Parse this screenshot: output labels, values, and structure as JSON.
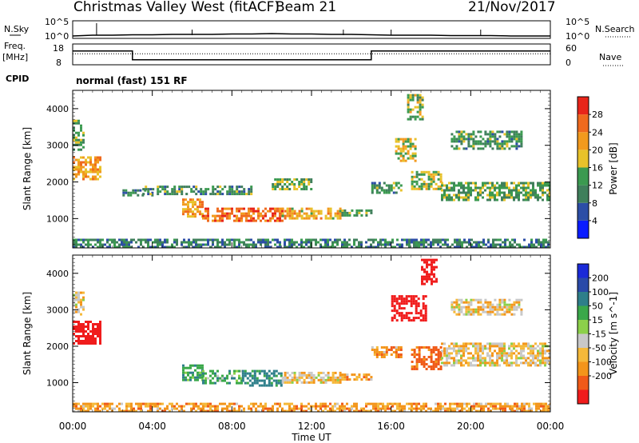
{
  "header": {
    "station": "Christmas Valley West (fitACF)",
    "beam": "Beam 21",
    "date": "21/Nov/2017"
  },
  "colors": {
    "power": [
      "#0a1cff",
      "#2c4ea6",
      "#3f7f5b",
      "#3b9a50",
      "#e8c22a",
      "#f29a1e",
      "#ef6a1e",
      "#e8251a"
    ],
    "velocity": [
      "#f01c1c",
      "#f05a18",
      "#f3951a",
      "#f5b93a",
      "#c8c8c8",
      "#8cd04a",
      "#3aa84a",
      "#2e7f8a",
      "#2a4aa8",
      "#1a2ad8"
    ]
  },
  "chart_data": [
    {
      "type": "line",
      "name": "noise-search-panel",
      "left_label": "N.Sky",
      "right_label": "N.Search",
      "left_ticks": [
        "10^5",
        "10^0"
      ],
      "right_ticks": [
        "10^5",
        "10^0"
      ],
      "series": [
        {
          "name": "N.Sky",
          "x": [
            0,
            0.5,
            1,
            2,
            3,
            4,
            5,
            6,
            7,
            8,
            9,
            10,
            11,
            12,
            13,
            14,
            15,
            16,
            17,
            18,
            19,
            20,
            21,
            22,
            23,
            24
          ],
          "y": [
            0.2,
            0.25,
            0.3,
            0.3,
            0.35,
            0.35,
            0.4,
            0.4,
            0.4,
            0.45,
            0.45,
            0.5,
            0.45,
            0.45,
            0.4,
            0.4,
            0.35,
            0.3,
            0.3,
            0.3,
            0.25,
            0.25,
            0.25,
            0.2,
            0.2,
            0.2
          ]
        }
      ],
      "xlim": [
        0,
        24
      ]
    },
    {
      "type": "line",
      "name": "frequency-nave-panel",
      "left_label_lines": [
        "Freq.",
        "[MHz]"
      ],
      "right_label": "Nave",
      "left_ticks": [
        "18",
        "8"
      ],
      "right_ticks": [
        "60",
        "0"
      ],
      "series": [
        {
          "name": "Freq.",
          "x": [
            0,
            3,
            3,
            15,
            15,
            24
          ],
          "y": [
            14.8,
            14.8,
            10.2,
            10.2,
            14.8,
            14.8
          ]
        },
        {
          "name": "Nave",
          "x": [
            0,
            24
          ],
          "y": [
            32,
            32
          ]
        }
      ],
      "xlim": [
        0,
        24
      ],
      "ylim": [
        8,
        18
      ]
    },
    {
      "type": "label",
      "name": "cpid-panel",
      "label": "CPID",
      "text": "normal (fast) 151 RF"
    },
    {
      "type": "heatmap",
      "name": "power-panel",
      "ylabel": "Slant Range [km]",
      "yticks": [
        1000,
        2000,
        3000,
        4000
      ],
      "ylim": [
        200,
        4500
      ],
      "xlim": [
        0,
        24
      ],
      "colorbar_label": "Power [dB]",
      "colorbar_ticks": [
        4,
        8,
        12,
        16,
        20,
        24,
        28
      ],
      "colorbar_range": [
        0,
        32
      ],
      "regions": [
        {
          "x": [
            0.0,
            1.4
          ],
          "range": [
            2050,
            2700
          ],
          "value": 22
        },
        {
          "x": [
            0.0,
            0.6
          ],
          "range": [
            2900,
            3700
          ],
          "value": 14
        },
        {
          "x": [
            2.5,
            4.0
          ],
          "range": [
            1650,
            1800
          ],
          "value": 10
        },
        {
          "x": [
            5.5,
            6.5
          ],
          "range": [
            1050,
            1550
          ],
          "value": 22
        },
        {
          "x": [
            6.5,
            10.5
          ],
          "range": [
            950,
            1300
          ],
          "value": 26
        },
        {
          "x": [
            10.5,
            13.5
          ],
          "range": [
            1000,
            1300
          ],
          "value": 20
        },
        {
          "x": [
            13.5,
            15.0
          ],
          "range": [
            1100,
            1250
          ],
          "value": 12
        },
        {
          "x": [
            3.5,
            9.0
          ],
          "range": [
            1700,
            1900
          ],
          "value": 12
        },
        {
          "x": [
            10.0,
            12.0
          ],
          "range": [
            1800,
            2100
          ],
          "value": 14
        },
        {
          "x": [
            15.0,
            16.5
          ],
          "range": [
            1700,
            2000
          ],
          "value": 12
        },
        {
          "x": [
            16.2,
            17.2
          ],
          "range": [
            2600,
            3200
          ],
          "value": 18
        },
        {
          "x": [
            17.0,
            18.5
          ],
          "range": [
            1800,
            2300
          ],
          "value": 16
        },
        {
          "x": [
            18.5,
            24.0
          ],
          "range": [
            1500,
            2000
          ],
          "value": 14
        },
        {
          "x": [
            19.0,
            22.5
          ],
          "range": [
            2900,
            3400
          ],
          "value": 12
        },
        {
          "x": [
            16.8,
            17.6
          ],
          "range": [
            3700,
            4400
          ],
          "value": 16
        },
        {
          "x": [
            0.0,
            24.0
          ],
          "range": [
            250,
            450
          ],
          "value": 10
        }
      ]
    },
    {
      "type": "heatmap",
      "name": "velocity-panel",
      "ylabel": "Slant Range [km]",
      "yticks": [
        1000,
        2000,
        3000,
        4000
      ],
      "ylim": [
        200,
        4500
      ],
      "xlim": [
        0,
        24
      ],
      "xticks": [
        "00:00",
        "04:00",
        "08:00",
        "12:00",
        "16:00",
        "20:00",
        "00:00"
      ],
      "xlabel": "Time UT",
      "colorbar_label": "Velocity [m s^-1]",
      "colorbar_ticks": [
        "200",
        "100",
        "50",
        "15",
        "-15",
        "-50",
        "-100",
        "-200"
      ],
      "regions": [
        {
          "x": [
            0.0,
            1.4
          ],
          "range": [
            2100,
            2700
          ],
          "value": -200
        },
        {
          "x": [
            0.0,
            0.6
          ],
          "range": [
            2900,
            3500
          ],
          "value": -15
        },
        {
          "x": [
            5.5,
            6.5
          ],
          "range": [
            1050,
            1500
          ],
          "value": 50
        },
        {
          "x": [
            6.5,
            8.5
          ],
          "range": [
            1000,
            1350
          ],
          "value": 50
        },
        {
          "x": [
            8.5,
            10.5
          ],
          "range": [
            950,
            1350
          ],
          "value": 100
        },
        {
          "x": [
            10.5,
            13.5
          ],
          "range": [
            1000,
            1300
          ],
          "value": -15
        },
        {
          "x": [
            13.5,
            15.0
          ],
          "range": [
            1100,
            1250
          ],
          "value": -50
        },
        {
          "x": [
            15.0,
            16.5
          ],
          "range": [
            1700,
            2000
          ],
          "value": -50
        },
        {
          "x": [
            16.0,
            17.8
          ],
          "range": [
            2700,
            3400
          ],
          "value": -200
        },
        {
          "x": [
            17.0,
            18.5
          ],
          "range": [
            1400,
            2000
          ],
          "value": -100
        },
        {
          "x": [
            18.5,
            24.0
          ],
          "range": [
            1500,
            2100
          ],
          "value": -15
        },
        {
          "x": [
            17.5,
            18.3
          ],
          "range": [
            3700,
            4400
          ],
          "value": -200
        },
        {
          "x": [
            19.0,
            22.5
          ],
          "range": [
            2900,
            3300
          ],
          "value": -15
        },
        {
          "x": [
            0.0,
            24.0
          ],
          "range": [
            250,
            450
          ],
          "value": -50
        }
      ]
    }
  ]
}
